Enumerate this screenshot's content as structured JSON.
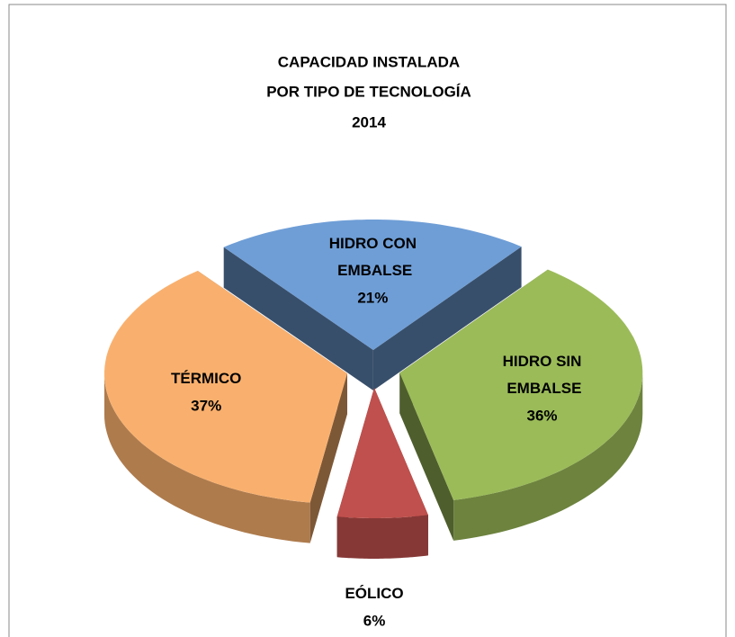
{
  "chart_data": {
    "type": "pie3d",
    "title": [
      "CAPACIDAD INSTALADA",
      "POR TIPO DE TECNOLOGÍA",
      "2014"
    ],
    "categories": [
      "HIDRO CON EMBALSE",
      "HIDRO SIN EMBALSE",
      "EÓLICO",
      "TÉRMICO"
    ],
    "values": [
      21,
      36,
      6,
      37
    ],
    "value_labels": [
      "21%",
      "36%",
      "6%",
      "37%"
    ],
    "colors": [
      "#6f9ed6",
      "#9bbb59",
      "#c0504d",
      "#f9b06e"
    ]
  }
}
